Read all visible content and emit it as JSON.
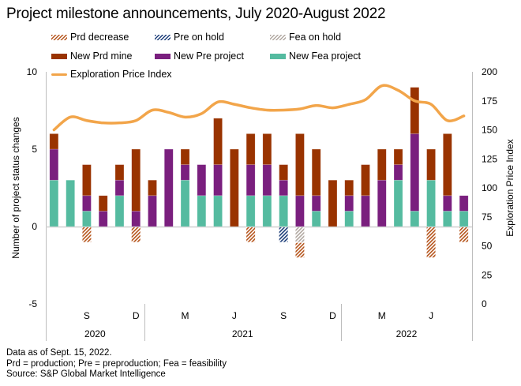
{
  "title": "Project milestone announcements, July 2020-August 2022",
  "legend": {
    "prd_decrease": "Prd decrease",
    "pre_on_hold": "Pre on hold",
    "fea_on_hold": "Fea on hold",
    "new_prd": "New Prd mine",
    "new_pre": "New Pre project",
    "new_fea": "New Fea project",
    "epi": "Exploration Price Index"
  },
  "colors": {
    "new_fea": "#55BBA0",
    "new_pre": "#7A1F7E",
    "new_prd": "#993300",
    "prd_decrease": "#B5541B",
    "pre_on_hold": "#1E3F7A",
    "fea_on_hold": "#B0A7A0",
    "epi": "#F2A54A"
  },
  "footnotes": [
    "Data as of Sept. 15, 2022.",
    "Prd = production; Pre = preproduction; Fea = feasibility",
    "Source: S&P Global Market Intelligence"
  ],
  "chart_data": {
    "type": "bar",
    "subtype": "stacked bar + line (dual axis)",
    "title": "Project milestone announcements, July 2020-August 2022",
    "ylabel": "Number of project status changes",
    "y2label": "Exploration Price Index",
    "ylim": [
      -5,
      10
    ],
    "yticks": [
      -5,
      0,
      5,
      10
    ],
    "y2lim": [
      0,
      200
    ],
    "y2ticks": [
      0,
      25,
      50,
      75,
      100,
      125,
      150,
      175,
      200
    ],
    "legend_position": "top",
    "categories": [
      "Jul 2020",
      "Aug 2020",
      "Sep 2020",
      "Oct 2020",
      "Nov 2020",
      "Dec 2020",
      "Jan 2021",
      "Feb 2021",
      "Mar 2021",
      "Apr 2021",
      "May 2021",
      "Jun 2021",
      "Jul 2021",
      "Aug 2021",
      "Sep 2021",
      "Oct 2021",
      "Nov 2021",
      "Dec 2021",
      "Jan 2022",
      "Feb 2022",
      "Mar 2022",
      "Apr 2022",
      "May 2022",
      "Jun 2022",
      "Jul 2022",
      "Aug 2022"
    ],
    "x_month_labels": [
      {
        "index": 2,
        "label": "S"
      },
      {
        "index": 5,
        "label": "D"
      },
      {
        "index": 8,
        "label": "M"
      },
      {
        "index": 11,
        "label": "J"
      },
      {
        "index": 14,
        "label": "S"
      },
      {
        "index": 17,
        "label": "D"
      },
      {
        "index": 20,
        "label": "M"
      },
      {
        "index": 23,
        "label": "J"
      }
    ],
    "x_year_groups": [
      {
        "label": "2020",
        "start": 0,
        "end": 5
      },
      {
        "label": "2021",
        "start": 6,
        "end": 17
      },
      {
        "label": "2022",
        "start": 18,
        "end": 25
      }
    ],
    "series": [
      {
        "key": "new_fea",
        "name": "New Fea project",
        "kind": "bar",
        "values": [
          3,
          3,
          1,
          0,
          2,
          0,
          0,
          0,
          3,
          2,
          2,
          0,
          2,
          2,
          2,
          0,
          1,
          0,
          1,
          0,
          0,
          3,
          1,
          3,
          1,
          1
        ]
      },
      {
        "key": "new_pre",
        "name": "New Pre project",
        "kind": "bar",
        "values": [
          2,
          0,
          1,
          1,
          1,
          1,
          2,
          5,
          1,
          2,
          2,
          0,
          2,
          2,
          1,
          2,
          1,
          0,
          1,
          2,
          3,
          1,
          5,
          0,
          1,
          1
        ]
      },
      {
        "key": "new_prd",
        "name": "New Prd mine",
        "kind": "bar",
        "values": [
          1,
          0,
          2,
          1,
          1,
          4,
          1,
          0,
          1,
          0,
          3,
          5,
          2,
          2,
          1,
          4,
          3,
          3,
          1,
          2,
          2,
          1,
          3,
          2,
          4,
          0
        ]
      },
      {
        "key": "fea_on_hold",
        "name": "Fea on hold",
        "kind": "bar-negative",
        "values": [
          0,
          0,
          0,
          0,
          0,
          0,
          0,
          0,
          0,
          0,
          0,
          0,
          0,
          0,
          0,
          -1,
          0,
          0,
          0,
          0,
          0,
          0,
          0,
          0,
          0,
          0
        ]
      },
      {
        "key": "pre_on_hold",
        "name": "Pre on hold",
        "kind": "bar-negative",
        "values": [
          0,
          0,
          0,
          0,
          0,
          0,
          0,
          0,
          0,
          0,
          0,
          0,
          0,
          0,
          -1,
          0,
          0,
          0,
          0,
          0,
          0,
          0,
          0,
          0,
          0,
          0
        ]
      },
      {
        "key": "prd_decrease",
        "name": "Prd decrease",
        "kind": "bar-negative",
        "values": [
          0,
          0,
          -1,
          0,
          0,
          -1,
          0,
          0,
          0,
          0,
          0,
          0,
          -1,
          0,
          0,
          -1,
          0,
          0,
          0,
          0,
          0,
          0,
          0,
          -2,
          0,
          -1
        ]
      },
      {
        "key": "epi",
        "name": "Exploration Price Index",
        "kind": "line",
        "axis": "right",
        "values": [
          150,
          161,
          158,
          156,
          156,
          158,
          167,
          165,
          161,
          164,
          174,
          172,
          169,
          167,
          167,
          168,
          171,
          169,
          172,
          176,
          188,
          184,
          175,
          172,
          158,
          162
        ]
      }
    ]
  }
}
